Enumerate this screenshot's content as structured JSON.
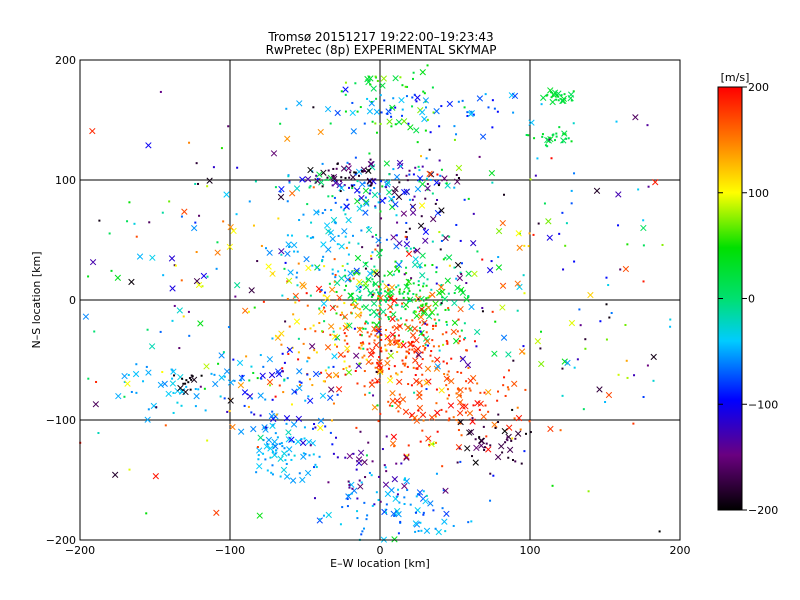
{
  "chart_data": {
    "type": "scatter",
    "title": "Tromsø 20151217 19:22:00–19:23:43",
    "subtitle": "RwPretec (8p) EXPERIMENTAL SKYMAP",
    "xlabel": "E–W location [km]",
    "ylabel": "N–S location [km]",
    "xlim": [
      -200,
      200
    ],
    "ylim": [
      -200,
      200
    ],
    "xticks": [
      -200,
      -100,
      0,
      100,
      200
    ],
    "yticks": [
      -200,
      -100,
      0,
      100,
      200
    ],
    "gridlines": [
      -100,
      0,
      100
    ],
    "colorbar": {
      "label": "[m/s]",
      "range": [
        -200,
        200
      ],
      "ticks": [
        -200,
        -100,
        0,
        100,
        200
      ],
      "colormap": "black-purple-blue-cyan-green-yellow-red"
    },
    "markers": [
      "point",
      "cross"
    ],
    "clusters": [
      {
        "x": 0,
        "y": 98,
        "sx": 30,
        "sy": 10,
        "n": 140,
        "v": [
          -200,
          40
        ]
      },
      {
        "x": -25,
        "y": 105,
        "sx": 12,
        "sy": 5,
        "n": 30,
        "v": [
          -200,
          -150
        ]
      },
      {
        "x": 15,
        "y": 5,
        "sx": 22,
        "sy": 18,
        "n": 220,
        "v": [
          -20,
          60
        ]
      },
      {
        "x": 15,
        "y": -35,
        "sx": 22,
        "sy": 18,
        "n": 170,
        "v": [
          150,
          200
        ]
      },
      {
        "x": -28,
        "y": -25,
        "sx": 25,
        "sy": 28,
        "n": 130,
        "v": [
          100,
          200
        ]
      },
      {
        "x": 50,
        "y": -90,
        "sx": 30,
        "sy": 18,
        "n": 120,
        "v": [
          150,
          200
        ]
      },
      {
        "x": 75,
        "y": -120,
        "sx": 12,
        "sy": 10,
        "n": 40,
        "v": [
          -200,
          -150
        ]
      },
      {
        "x": -67,
        "y": -125,
        "sx": 12,
        "sy": 12,
        "n": 70,
        "v": [
          -60,
          -30
        ]
      },
      {
        "x": 10,
        "y": -175,
        "sx": 22,
        "sy": 14,
        "n": 90,
        "v": [
          -80,
          -30
        ]
      },
      {
        "x": -10,
        "y": -140,
        "sx": 15,
        "sy": 15,
        "n": 40,
        "v": [
          -160,
          -110
        ]
      },
      {
        "x": -40,
        "y": 50,
        "sx": 22,
        "sy": 18,
        "n": 70,
        "v": [
          -60,
          -20
        ]
      },
      {
        "x": -135,
        "y": -70,
        "sx": 25,
        "sy": 15,
        "n": 50,
        "v": [
          -60,
          -30
        ]
      },
      {
        "x": -128,
        "y": -68,
        "sx": 4,
        "sy": 4,
        "n": 15,
        "v": [
          -200,
          -190
        ]
      },
      {
        "x": 120,
        "y": 170,
        "sx": 8,
        "sy": 3,
        "n": 25,
        "v": [
          10,
          40
        ]
      },
      {
        "x": 115,
        "y": 135,
        "sx": 8,
        "sy": 4,
        "n": 25,
        "v": [
          10,
          40
        ]
      },
      {
        "x": 10,
        "y": 170,
        "sx": 20,
        "sy": 20,
        "n": 60,
        "v": [
          10,
          80
        ]
      },
      {
        "x": 40,
        "y": 160,
        "sx": 40,
        "sy": 10,
        "n": 60,
        "v": [
          -100,
          -40
        ]
      },
      {
        "x": 20,
        "y": 55,
        "sx": 20,
        "sy": 20,
        "n": 60,
        "v": [
          -200,
          0
        ]
      },
      {
        "x": -60,
        "y": -80,
        "sx": 20,
        "sy": 25,
        "n": 60,
        "v": [
          -120,
          -40
        ]
      },
      {
        "x": 100,
        "y": 0,
        "sx": 60,
        "sy": 60,
        "n": 120,
        "v": [
          -200,
          200
        ]
      },
      {
        "x": -100,
        "y": 0,
        "sx": 60,
        "sy": 60,
        "n": 120,
        "v": [
          -200,
          200
        ]
      },
      {
        "x": 0,
        "y": 0,
        "sx": 110,
        "sy": 110,
        "n": 180,
        "v": [
          -200,
          200
        ]
      }
    ]
  }
}
